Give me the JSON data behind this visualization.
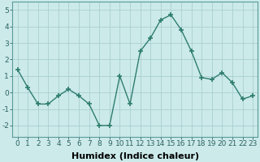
{
  "x": [
    0,
    1,
    2,
    3,
    4,
    5,
    6,
    7,
    8,
    9,
    10,
    11,
    12,
    13,
    14,
    15,
    16,
    17,
    18,
    19,
    20,
    21,
    22,
    23
  ],
  "y": [
    1.4,
    0.3,
    -0.7,
    -0.7,
    -0.2,
    0.2,
    -0.2,
    -0.7,
    -2.0,
    -2.0,
    1.0,
    -0.7,
    2.5,
    3.3,
    4.4,
    4.7,
    3.8,
    2.5,
    0.9,
    0.8,
    1.2,
    0.6,
    -0.4,
    -0.2
  ],
  "line_color": "#2e7d6e",
  "marker": "+",
  "marker_size": 5,
  "marker_lw": 1.2,
  "background_color": "#cceaea",
  "grid_color": "#aacfcf",
  "xlabel": "Humidex (Indice chaleur)",
  "xlabel_fontsize": 8,
  "xlim": [
    -0.5,
    23.5
  ],
  "ylim": [
    -2.7,
    5.5
  ],
  "yticks": [
    -2,
    -1,
    0,
    1,
    2,
    3,
    4,
    5
  ],
  "xticks": [
    0,
    1,
    2,
    3,
    4,
    5,
    6,
    7,
    8,
    9,
    10,
    11,
    12,
    13,
    14,
    15,
    16,
    17,
    18,
    19,
    20,
    21,
    22,
    23
  ],
  "tick_fontsize": 6.5,
  "line_width": 1.0
}
